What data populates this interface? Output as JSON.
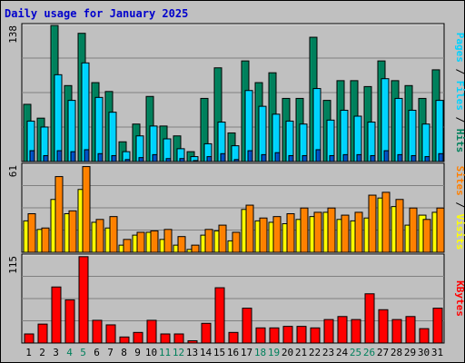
{
  "title": "Daily usage for January 2025",
  "colors": {
    "hits": "#00805c",
    "files": "#00d2ff",
    "sites": "#ff8000",
    "visits": "#ffff00",
    "kbytes": "#ff0000",
    "weekend": "#00805c",
    "daylabel": "#000000",
    "title": "#0000cc"
  },
  "chart_data": [
    {
      "type": "bar",
      "categories": [
        "1",
        "2",
        "3",
        "4",
        "5",
        "6",
        "7",
        "8",
        "9",
        "10",
        "11",
        "12",
        "13",
        "14",
        "15",
        "16",
        "17",
        "18",
        "19",
        "20",
        "21",
        "22",
        "23",
        "24",
        "25",
        "26",
        "27",
        "28",
        "29",
        "30",
        "31"
      ],
      "weekend_days": [
        "4",
        "5",
        "11",
        "12",
        "18",
        "19",
        "25",
        "26"
      ],
      "ymax_label": "138",
      "ylim": [
        0,
        138
      ],
      "right_label": [
        "Pages",
        "Files",
        "Hits"
      ],
      "series": [
        {
          "name": "Hits",
          "values": [
            58,
            44,
            138,
            77,
            130,
            80,
            71,
            20,
            38,
            66,
            36,
            26,
            10,
            64,
            95,
            29,
            102,
            80,
            90,
            64,
            64,
            126,
            62,
            82,
            82,
            76,
            102,
            82,
            77,
            64,
            93
          ]
        },
        {
          "name": "Files",
          "values": [
            41,
            35,
            88,
            62,
            100,
            65,
            50,
            10,
            26,
            36,
            23,
            13,
            5,
            18,
            40,
            16,
            72,
            56,
            48,
            41,
            38,
            74,
            42,
            52,
            46,
            40,
            84,
            64,
            52,
            38,
            62
          ]
        },
        {
          "name": "Pages",
          "values": [
            11,
            6,
            11,
            10,
            12,
            8,
            6,
            2,
            4,
            7,
            3,
            3,
            1,
            5,
            8,
            2,
            11,
            7,
            9,
            6,
            6,
            12,
            6,
            7,
            7,
            6,
            11,
            7,
            6,
            5,
            8
          ]
        }
      ]
    },
    {
      "type": "bar",
      "categories": [
        "1",
        "2",
        "3",
        "4",
        "5",
        "6",
        "7",
        "8",
        "9",
        "10",
        "11",
        "12",
        "13",
        "14",
        "15",
        "16",
        "17",
        "18",
        "19",
        "20",
        "21",
        "22",
        "23",
        "24",
        "25",
        "26",
        "27",
        "28",
        "29",
        "30",
        "31"
      ],
      "ymax_label": "61",
      "ylim": [
        0,
        61
      ],
      "right_label": [
        "Sites",
        "Visits"
      ],
      "series": [
        {
          "name": "Sites",
          "values": [
            22,
            16,
            37,
            27,
            44,
            21,
            17,
            5,
            12,
            14,
            9,
            5,
            2,
            12,
            15,
            8,
            30,
            22,
            21,
            20,
            23,
            25,
            28,
            23,
            22,
            24,
            38,
            32,
            19,
            26,
            28
          ]
        },
        {
          "name": "Visits",
          "values": [
            27,
            17,
            53,
            29,
            60,
            23,
            25,
            9,
            14,
            15,
            16,
            11,
            5,
            16,
            19,
            14,
            33,
            24,
            25,
            27,
            31,
            28,
            31,
            26,
            28,
            40,
            42,
            37,
            31,
            23,
            31
          ]
        }
      ]
    },
    {
      "type": "bar",
      "categories": [
        "1",
        "2",
        "3",
        "4",
        "5",
        "6",
        "7",
        "8",
        "9",
        "10",
        "11",
        "12",
        "13",
        "14",
        "15",
        "16",
        "17",
        "18",
        "19",
        "20",
        "21",
        "22",
        "23",
        "24",
        "25",
        "26",
        "27",
        "28",
        "29",
        "30",
        "31"
      ],
      "ymax_label": "115",
      "ylim": [
        0,
        115
      ],
      "right_label": [
        "KBytes"
      ],
      "series": [
        {
          "name": "KBytes",
          "values": [
            12,
            25,
            74,
            57,
            114,
            30,
            24,
            8,
            14,
            30,
            12,
            12,
            3,
            26,
            73,
            14,
            46,
            20,
            20,
            22,
            22,
            20,
            31,
            35,
            31,
            65,
            44,
            31,
            35,
            19,
            46
          ]
        }
      ]
    }
  ]
}
